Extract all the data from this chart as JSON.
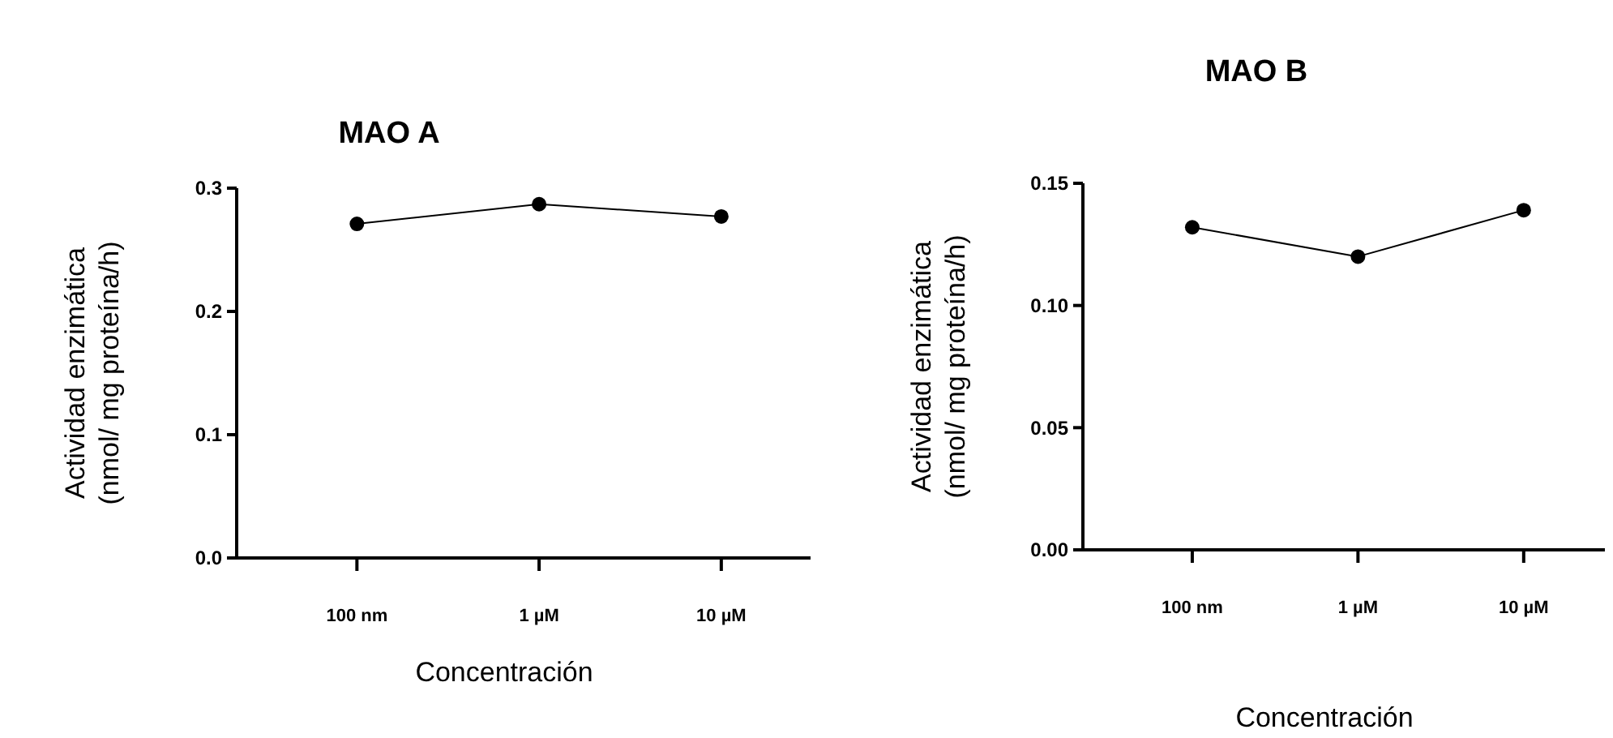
{
  "chart_data": [
    {
      "type": "line",
      "title": "MAO A",
      "xlabel": "Concentración",
      "ylabel": "Actividad enzimática\n(nmol/ mg proteína/h)",
      "categories": [
        "100 nm",
        "1 µM",
        "10 µM"
      ],
      "series": [
        {
          "color": "#000000",
          "values": [
            0.271,
            0.287,
            0.277
          ]
        }
      ],
      "ylim": [
        0,
        0.3
      ],
      "yticks": [
        {
          "value": 0,
          "label": "0.0"
        },
        {
          "value": 0.1,
          "label": "0.1"
        },
        {
          "value": 0.2,
          "label": "0.2"
        },
        {
          "value": 0.3,
          "label": "0.3"
        }
      ],
      "marker": "circle"
    },
    {
      "type": "line",
      "title": "MAO B",
      "xlabel": "Concentración",
      "ylabel": "Actividad enzimática\n(nmol/ mg proteína/h)",
      "categories": [
        "100 nm",
        "1 µM",
        "10 µM"
      ],
      "series": [
        {
          "color": "#000000",
          "values": [
            0.132,
            0.12,
            0.139
          ]
        }
      ],
      "ylim": [
        0,
        0.15
      ],
      "yticks": [
        {
          "value": 0,
          "label": "0.00"
        },
        {
          "value": 0.05,
          "label": "0.05"
        },
        {
          "value": 0.1,
          "label": "0.10"
        },
        {
          "value": 0.15,
          "label": "0.15"
        }
      ],
      "marker": "circle"
    }
  ]
}
